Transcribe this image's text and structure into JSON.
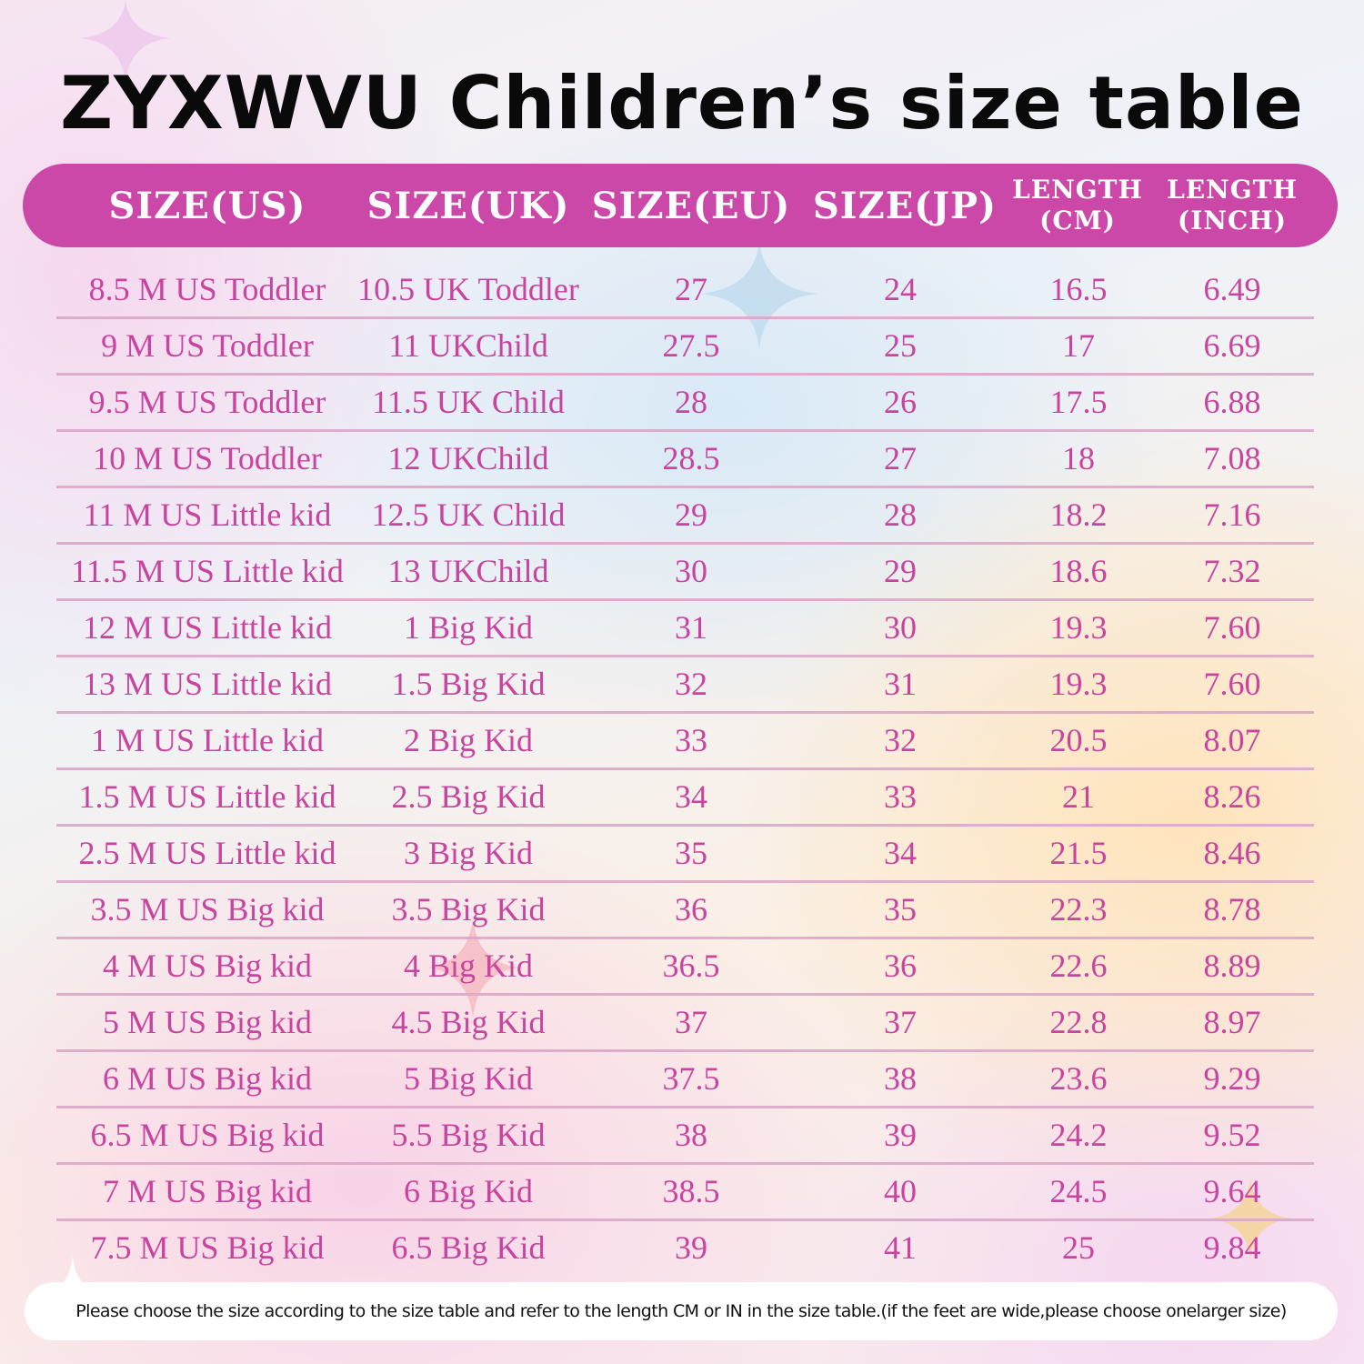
{
  "title": "ZYXWVU Children’s size table",
  "colors": {
    "header_bg": "#cc48a8",
    "cell_text": "#c8449f",
    "divider": "#d9a7c6",
    "title_text": "#0a0a0a"
  },
  "table": {
    "headers": [
      "SIZE(US)",
      "SIZE(UK)",
      "SIZE(EU)",
      "SIZE(JP)",
      "LENGTH\n(CM)",
      "LENGTH\n(INCH)"
    ],
    "rows": [
      [
        "8.5 M US Toddler",
        "10.5 UK Toddler",
        "27",
        "24",
        "16.5",
        "6.49"
      ],
      [
        "9 M US Toddler",
        "11 UKChild",
        "27.5",
        "25",
        "17",
        "6.69"
      ],
      [
        "9.5 M US Toddler",
        "11.5 UK Child",
        "28",
        "26",
        "17.5",
        "6.88"
      ],
      [
        "10 M US Toddler",
        "12 UKChild",
        "28.5",
        "27",
        "18",
        "7.08"
      ],
      [
        "11 M US Little kid",
        "12.5 UK Child",
        "29",
        "28",
        "18.2",
        "7.16"
      ],
      [
        "11.5 M US Little kid",
        "13 UKChild",
        "30",
        "29",
        "18.6",
        "7.32"
      ],
      [
        "12 M US Little kid",
        "1 Big Kid",
        "31",
        "30",
        "19.3",
        "7.60"
      ],
      [
        "13 M US Little kid",
        "1.5 Big Kid",
        "32",
        "31",
        "19.3",
        "7.60"
      ],
      [
        "1 M US Little kid",
        "2 Big Kid",
        "33",
        "32",
        "20.5",
        "8.07"
      ],
      [
        "1.5 M US Little kid",
        "2.5 Big Kid",
        "34",
        "33",
        "21",
        "8.26"
      ],
      [
        "2.5 M US Little kid",
        "3 Big Kid",
        "35",
        "34",
        "21.5",
        "8.46"
      ],
      [
        "3.5 M US Big kid",
        "3.5 Big Kid",
        "36",
        "35",
        "22.3",
        "8.78"
      ],
      [
        "4 M US Big kid",
        "4 Big Kid",
        "36.5",
        "36",
        "22.6",
        "8.89"
      ],
      [
        "5 M US Big kid",
        "4.5 Big Kid",
        "37",
        "37",
        "22.8",
        "8.97"
      ],
      [
        "6 M US Big kid",
        "5 Big Kid",
        "37.5",
        "38",
        "23.6",
        "9.29"
      ],
      [
        "6.5 M US Big kid",
        "5.5 Big Kid",
        "38",
        "39",
        "24.2",
        "9.52"
      ],
      [
        "7 M US Big kid",
        "6 Big Kid",
        "38.5",
        "40",
        "24.5",
        "9.64"
      ],
      [
        "7.5 M US Big kid",
        "6.5 Big Kid",
        "39",
        "41",
        "25",
        "9.84"
      ]
    ]
  },
  "note": "Please choose the size according to the size table and refer to the length CM or IN in the size table.(if the feet are wide,please choose onelarger size)"
}
